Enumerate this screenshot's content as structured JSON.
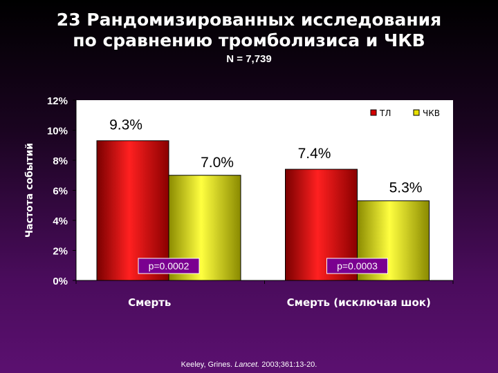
{
  "slide": {
    "title_line1": "23 Рандомизированных исследования",
    "title_line2": "по сравнению тромболизиса и ЧКВ",
    "subtitle": "N = 7,739",
    "citation_pre": "Keeley, Grines. ",
    "citation_journal": "Lancet.",
    "citation_post": "  2003;361:13-20."
  },
  "chart_data": {
    "type": "bar",
    "ylabel": "Частота событий",
    "xlabel": "",
    "ylim": [
      0,
      12
    ],
    "yticks": [
      "0%",
      "2%",
      "4%",
      "6%",
      "8%",
      "10%",
      "12%"
    ],
    "categories": [
      "Смерть",
      "Смерть (исключая шок)"
    ],
    "series": [
      {
        "name": "ТЛ",
        "values": [
          9.3,
          7.4
        ],
        "labels": [
          "9.3%",
          "7.4%"
        ],
        "color": "#d40000"
      },
      {
        "name": "ЧКВ",
        "values": [
          7.0,
          5.3
        ],
        "labels": [
          "7.0%",
          "5.3%"
        ],
        "color": "#e8e000"
      }
    ],
    "pvalues": [
      "p=0.0002",
      "p=0.0003"
    ],
    "legend_position": "top-right",
    "grid": false,
    "plot_background": "#ffffff"
  }
}
